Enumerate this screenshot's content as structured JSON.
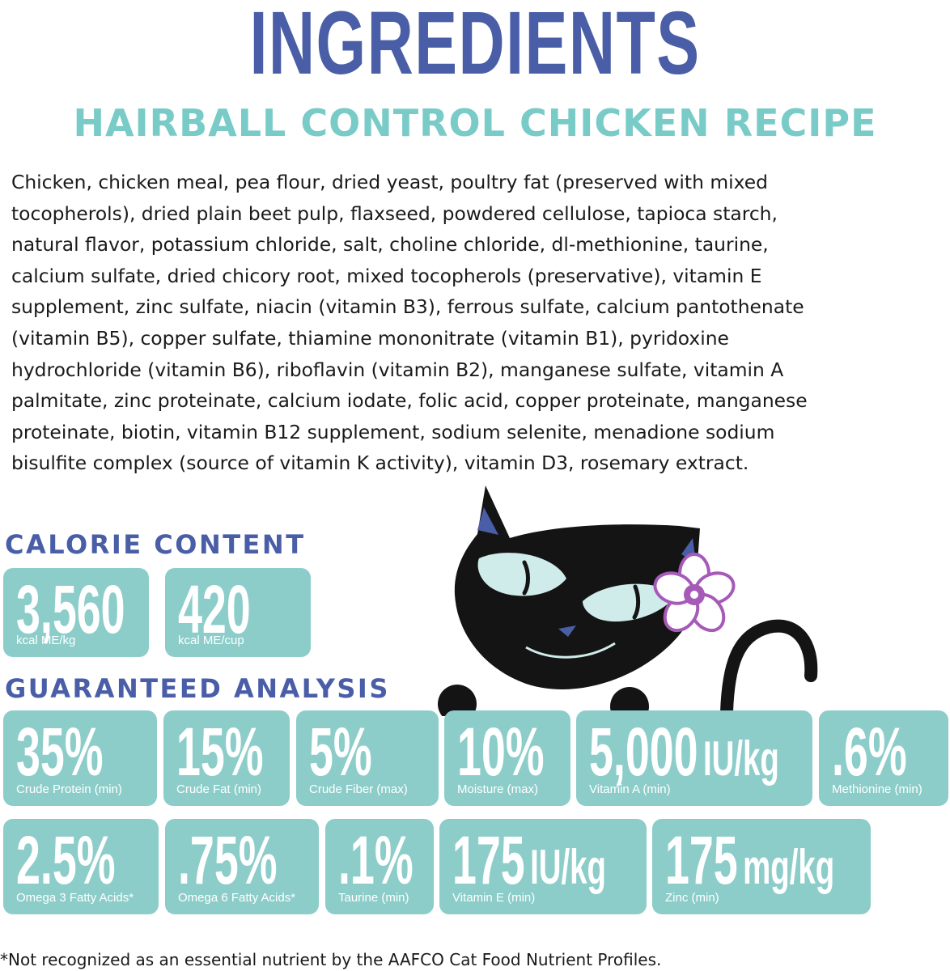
{
  "header": {
    "title": "INGREDIENTS",
    "subtitle": "HAIRBALL CONTROL CHICKEN RECIPE"
  },
  "ingredients_lines": [
    "Chicken, chicken meal, pea flour, dried yeast, poultry fat (preserved with mixed",
    "tocopherols), dried plain beet pulp, flaxseed, powdered cellulose, tapioca starch,",
    "natural flavor, potassium chloride, salt, choline chloride, dl-methionine, taurine,",
    "calcium sulfate, dried chicory root, mixed tocopherols (preservative), vitamin E",
    "supplement, zinc sulfate, niacin (vitamin B3), ferrous sulfate, calcium pantothenate",
    "(vitamin B5), copper sulfate, thiamine mononitrate (vitamin B1), pyridoxine",
    "hydrochloride (vitamin B6), riboflavin (vitamin B2), manganese sulfate, vitamin A",
    "palmitate, zinc proteinate, calcium iodate, folic acid, copper proteinate, manganese",
    "proteinate, biotin, vitamin B12 supplement, sodium selenite, menadione sodium",
    "bisulfite complex (source of vitamin K activity), vitamin D3, rosemary extract."
  ],
  "calorie": {
    "heading": "CALORIE CONTENT",
    "items": [
      {
        "value": "3,560",
        "unit": "",
        "label": "kcal ME/kg"
      },
      {
        "value": "420",
        "unit": "",
        "label": "kcal ME/cup"
      }
    ]
  },
  "analysis": {
    "heading": "GUARANTEED ANALYSIS",
    "row1": [
      {
        "value": "35%",
        "unit": "",
        "label": "Crude Protein (min)"
      },
      {
        "value": "15%",
        "unit": "",
        "label": "Crude Fat (min)"
      },
      {
        "value": "5%",
        "unit": "",
        "label": "Crude Fiber (max)"
      },
      {
        "value": "10%",
        "unit": "",
        "label": "Moisture (max)"
      },
      {
        "value": "5,000",
        "unit": "IU/kg",
        "label": "Vitamin A (min)"
      },
      {
        "value": ".6%",
        "unit": "",
        "label": "Methionine (min)"
      }
    ],
    "row2": [
      {
        "value": "2.5%",
        "unit": "",
        "label": "Omega 3 Fatty Acids*"
      },
      {
        "value": ".75%",
        "unit": "",
        "label": "Omega 6 Fatty Acids*"
      },
      {
        "value": ".1%",
        "unit": "",
        "label": "Taurine (min)"
      },
      {
        "value": "175",
        "unit": "IU/kg",
        "label": "Vitamin E  (min)"
      },
      {
        "value": "175",
        "unit": "mg/kg",
        "label": "Zinc (min)"
      }
    ]
  },
  "footnote": "*Not recognized as an essential nutrient by the AAFCO Cat Food Nutrient Profiles.",
  "colors": {
    "title": "#4a5ea8",
    "subtitle": "#79cbc8",
    "tile": "#8ccdca",
    "cat": "#141414",
    "flower": "#a65ab8"
  },
  "illustration": {
    "icons": [
      "cat-icon",
      "flower-icon"
    ]
  }
}
